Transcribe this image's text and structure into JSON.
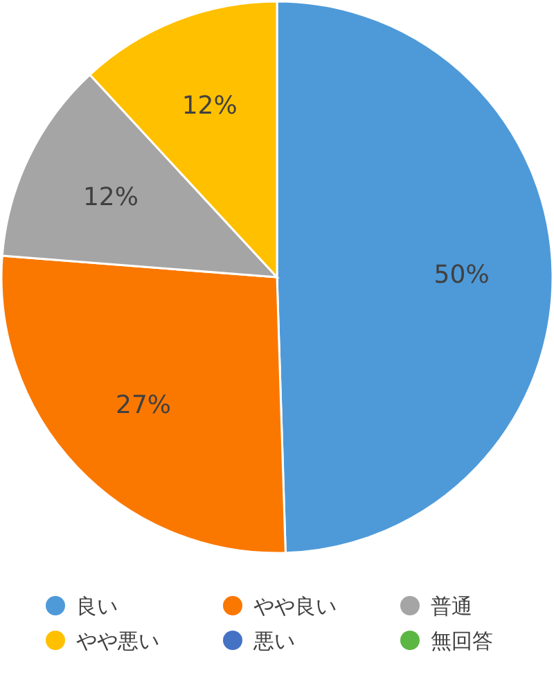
{
  "chart_data": {
    "type": "pie",
    "categories": [
      "良い",
      "やや良い",
      "普通",
      "やや悪い",
      "悪い",
      "無回答"
    ],
    "values": [
      50,
      27,
      12,
      12,
      0,
      0
    ],
    "colors": [
      "#4e9ad9",
      "#fa7800",
      "#a5a5a5",
      "#ffc000",
      "#4472c4",
      "#5cb644"
    ],
    "value_labels": [
      "50%",
      "27%",
      "12%",
      "12%",
      null,
      null
    ],
    "legend": "bottom"
  }
}
